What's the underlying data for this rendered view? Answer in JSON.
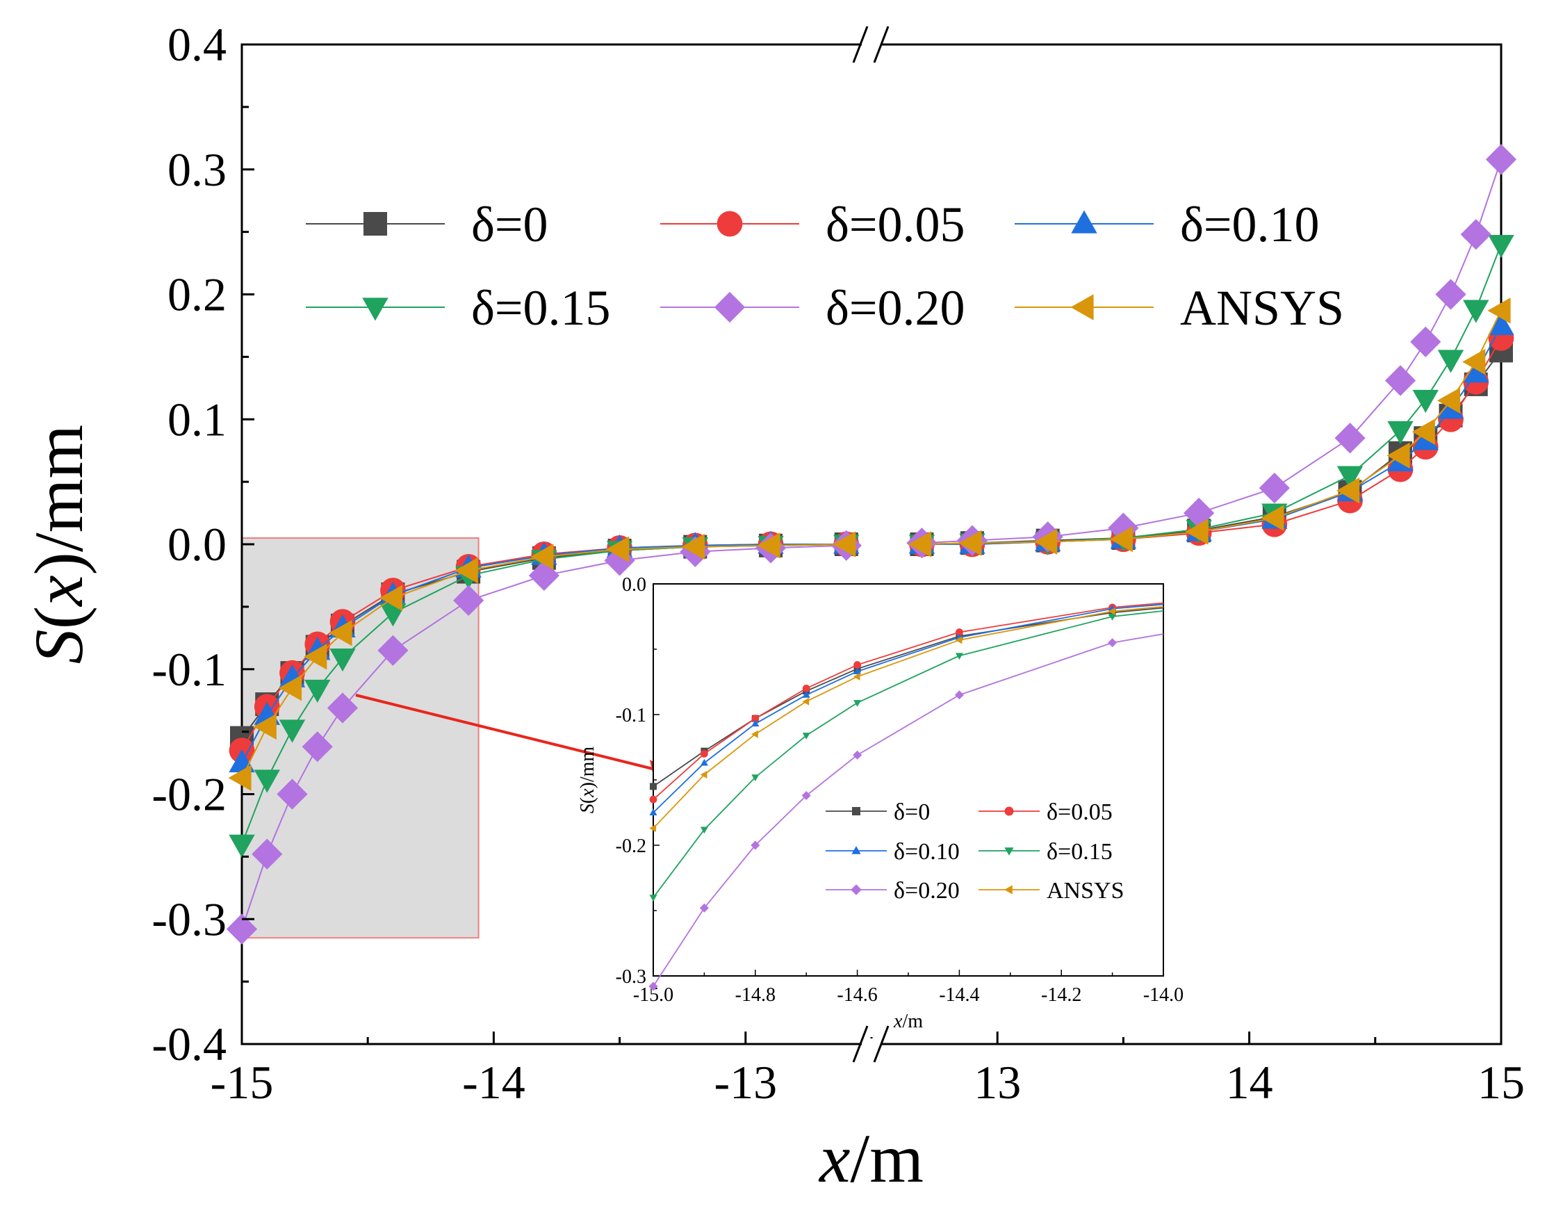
{
  "chart_data": {
    "type": "line",
    "title": "",
    "xlabel_var": "x",
    "xlabel_unit": "/m",
    "ylabel_var": "S",
    "ylabel_arg": "x",
    "ylabel_unit": "/mm",
    "ylim": [
      -0.4,
      0.4
    ],
    "yticks": [
      "0.4",
      "0.3",
      "0.2",
      "0.1",
      "0.0",
      "-0.1",
      "-0.2",
      "-0.3",
      "-0.4"
    ],
    "xticks_left": [
      "-15",
      "-14",
      "-13"
    ],
    "xticks_right": [
      "13",
      "14",
      "15"
    ],
    "x_break": "//",
    "x_left_range": [
      -15,
      -12.5
    ],
    "x_right_range": [
      12.5,
      15
    ],
    "legend_position": "top",
    "series": [
      {
        "name": "δ=0",
        "color": "#4a4a4a",
        "marker": "square",
        "x_left": [
          -15,
          -14.9,
          -14.8,
          -14.7,
          -14.6,
          -14.4,
          -14.1,
          -13.8,
          -13.5,
          -13.2,
          -12.9,
          -12.6
        ],
        "y_left": [
          -0.155,
          -0.128,
          -0.103,
          -0.082,
          -0.065,
          -0.04,
          -0.022,
          -0.011,
          -0.005,
          -0.002,
          -0.001,
          0.0
        ],
        "x_right": [
          12.7,
          12.9,
          13.2,
          13.5,
          13.8,
          14.1,
          14.4,
          14.6,
          14.7,
          14.8,
          14.9,
          15
        ],
        "y_right": [
          0.0,
          0.001,
          0.003,
          0.005,
          0.011,
          0.022,
          0.042,
          0.073,
          0.085,
          0.103,
          0.128,
          0.155
        ]
      },
      {
        "name": "δ=0.05",
        "color": "#ee3b3b",
        "marker": "circle",
        "x_left": [
          -15,
          -14.9,
          -14.8,
          -14.7,
          -14.6,
          -14.4,
          -14.1,
          -13.8,
          -13.5,
          -13.2,
          -12.9,
          -12.6
        ],
        "y_left": [
          -0.165,
          -0.13,
          -0.103,
          -0.08,
          -0.062,
          -0.037,
          -0.018,
          -0.008,
          -0.003,
          -0.001,
          0.0,
          0.0
        ],
        "x_right": [
          12.7,
          12.9,
          13.2,
          13.5,
          13.8,
          14.1,
          14.4,
          14.6,
          14.7,
          14.8,
          14.9,
          15
        ],
        "y_right": [
          0.0,
          0.0,
          0.002,
          0.004,
          0.009,
          0.016,
          0.035,
          0.06,
          0.078,
          0.1,
          0.13,
          0.165
        ]
      },
      {
        "name": "δ=0.10",
        "color": "#1f6fdf",
        "marker": "triangle-up",
        "x_left": [
          -15,
          -14.9,
          -14.8,
          -14.7,
          -14.6,
          -14.4,
          -14.1,
          -13.8,
          -13.5,
          -13.2,
          -12.9,
          -12.6
        ],
        "y_left": [
          -0.175,
          -0.137,
          -0.107,
          -0.085,
          -0.067,
          -0.041,
          -0.019,
          -0.009,
          -0.003,
          -0.001,
          0.0,
          0.0
        ],
        "x_right": [
          12.7,
          12.9,
          13.2,
          13.5,
          13.8,
          14.1,
          14.4,
          14.6,
          14.7,
          14.8,
          14.9,
          15
        ],
        "y_right": [
          0.0,
          0.0,
          0.002,
          0.004,
          0.01,
          0.02,
          0.042,
          0.066,
          0.083,
          0.108,
          0.137,
          0.175
        ]
      },
      {
        "name": "δ=0.15",
        "color": "#1fa35f",
        "marker": "triangle-down",
        "x_left": [
          -15,
          -14.9,
          -14.8,
          -14.7,
          -14.6,
          -14.4,
          -14.1,
          -13.8,
          -13.5,
          -13.2,
          -12.9,
          -12.6
        ],
        "y_left": [
          -0.24,
          -0.188,
          -0.148,
          -0.116,
          -0.091,
          -0.055,
          -0.025,
          -0.012,
          -0.005,
          -0.002,
          -0.001,
          0.0
        ],
        "x_right": [
          12.7,
          12.9,
          13.2,
          13.5,
          13.8,
          14.1,
          14.4,
          14.6,
          14.7,
          14.8,
          14.9,
          15
        ],
        "y_right": [
          0.0,
          0.001,
          0.002,
          0.005,
          0.012,
          0.025,
          0.055,
          0.091,
          0.116,
          0.148,
          0.188,
          0.24
        ]
      },
      {
        "name": "δ=0.20",
        "color": "#b373e0",
        "marker": "diamond",
        "x_left": [
          -15,
          -14.9,
          -14.8,
          -14.7,
          -14.6,
          -14.4,
          -14.1,
          -13.8,
          -13.5,
          -13.2,
          -12.9,
          -12.6
        ],
        "y_left": [
          -0.308,
          -0.248,
          -0.2,
          -0.162,
          -0.131,
          -0.085,
          -0.045,
          -0.025,
          -0.013,
          -0.006,
          -0.003,
          -0.001
        ],
        "x_right": [
          12.7,
          12.9,
          13.2,
          13.5,
          13.8,
          14.1,
          14.4,
          14.6,
          14.7,
          14.8,
          14.9,
          15
        ],
        "y_right": [
          0.001,
          0.003,
          0.006,
          0.013,
          0.025,
          0.045,
          0.085,
          0.131,
          0.162,
          0.2,
          0.248,
          0.308
        ]
      },
      {
        "name": "ANSYS",
        "color": "#d9960b",
        "marker": "triangle-left",
        "x_left": [
          -15,
          -14.9,
          -14.8,
          -14.7,
          -14.6,
          -14.4,
          -14.1,
          -13.8,
          -13.5,
          -13.2,
          -12.9,
          -12.6
        ],
        "y_left": [
          -0.187,
          -0.146,
          -0.115,
          -0.09,
          -0.071,
          -0.043,
          -0.021,
          -0.01,
          -0.004,
          -0.002,
          -0.001,
          0.0
        ],
        "x_right": [
          12.7,
          12.9,
          13.2,
          13.5,
          13.8,
          14.1,
          14.4,
          14.6,
          14.7,
          14.8,
          14.9,
          15
        ],
        "y_right": [
          0.0,
          0.001,
          0.002,
          0.004,
          0.01,
          0.021,
          0.043,
          0.071,
          0.09,
          0.115,
          0.146,
          0.187
        ]
      }
    ],
    "inset": {
      "xlim": [
        -15.0,
        -14.0
      ],
      "ylim": [
        -0.3,
        0.0
      ],
      "xticks": [
        "-15.0",
        "-14.8",
        "-14.6",
        "-14.4",
        "-14.2",
        "-14.0"
      ],
      "yticks": [
        "0.0",
        "-0.1",
        "-0.2",
        "-0.3"
      ],
      "xlabel_var": "x",
      "xlabel_unit": "/m",
      "ylabel_var": "S",
      "ylabel_arg": "x",
      "ylabel_unit": "/mm"
    }
  }
}
